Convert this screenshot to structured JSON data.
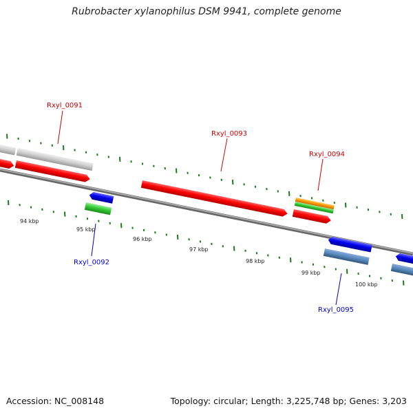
{
  "title": "Rubrobacter xylanophilus DSM 9941, complete genome",
  "accession": "Accession: NC_008148",
  "topology": "Topology: circular; Length: 3,225,748 bp; Genes: 3,203",
  "colors": {
    "backbone": "#888888",
    "tick": "#1a7a1a",
    "label_top": "#cc0000",
    "label_bottom": "#0000cc",
    "red_feature": "#ff0000",
    "blue_feature": "#0000ee",
    "green_feature": "#33cc33",
    "orange_feature": "#ff9900",
    "gray_feature": "#cccccc",
    "steel_feature": "#5588bb"
  },
  "scale_labels": [
    "94 kbp",
    "95 kbp",
    "96 kbp",
    "97 kbp",
    "98 kbp",
    "99 kbp",
    "100 kbp"
  ],
  "gene_labels": {
    "rxyl_0091": "Rxyl_0091",
    "rxyl_0092": "Rxyl_0092",
    "rxyl_0093": "Rxyl_0093",
    "rxyl_0094": "Rxyl_0094",
    "rxyl_0095": "Rxyl_0095"
  }
}
